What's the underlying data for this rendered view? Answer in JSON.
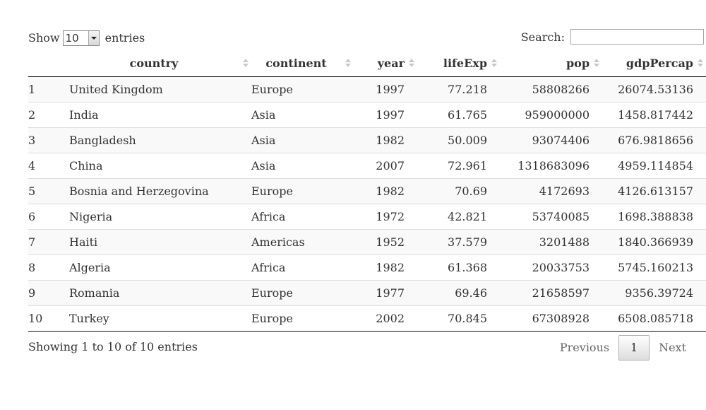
{
  "length_menu": {
    "show_label": "Show",
    "selected": "10",
    "entries_label": "entries"
  },
  "search": {
    "label": "Search:",
    "value": ""
  },
  "table": {
    "columns": [
      "",
      "country",
      "continent",
      "year",
      "lifeExp",
      "pop",
      "gdpPercap"
    ],
    "rows": [
      [
        "1",
        "United Kingdom",
        "Europe",
        "1997",
        "77.218",
        "58808266",
        "26074.53136"
      ],
      [
        "2",
        "India",
        "Asia",
        "1997",
        "61.765",
        "959000000",
        "1458.817442"
      ],
      [
        "3",
        "Bangladesh",
        "Asia",
        "1982",
        "50.009",
        "93074406",
        "676.9818656"
      ],
      [
        "4",
        "China",
        "Asia",
        "2007",
        "72.961",
        "1318683096",
        "4959.114854"
      ],
      [
        "5",
        "Bosnia and Herzegovina",
        "Europe",
        "1982",
        "70.69",
        "4172693",
        "4126.613157"
      ],
      [
        "6",
        "Nigeria",
        "Africa",
        "1972",
        "42.821",
        "53740085",
        "1698.388838"
      ],
      [
        "7",
        "Haiti",
        "Americas",
        "1952",
        "37.579",
        "3201488",
        "1840.366939"
      ],
      [
        "8",
        "Algeria",
        "Africa",
        "1982",
        "61.368",
        "20033753",
        "5745.160213"
      ],
      [
        "9",
        "Romania",
        "Europe",
        "1977",
        "69.46",
        "21658597",
        "9356.39724"
      ],
      [
        "10",
        "Turkey",
        "Europe",
        "2002",
        "70.845",
        "67308928",
        "6508.085718"
      ]
    ]
  },
  "info": "Showing 1 to 10 of 10 entries",
  "pagination": {
    "previous": "Previous",
    "current": "1",
    "next": "Next"
  }
}
